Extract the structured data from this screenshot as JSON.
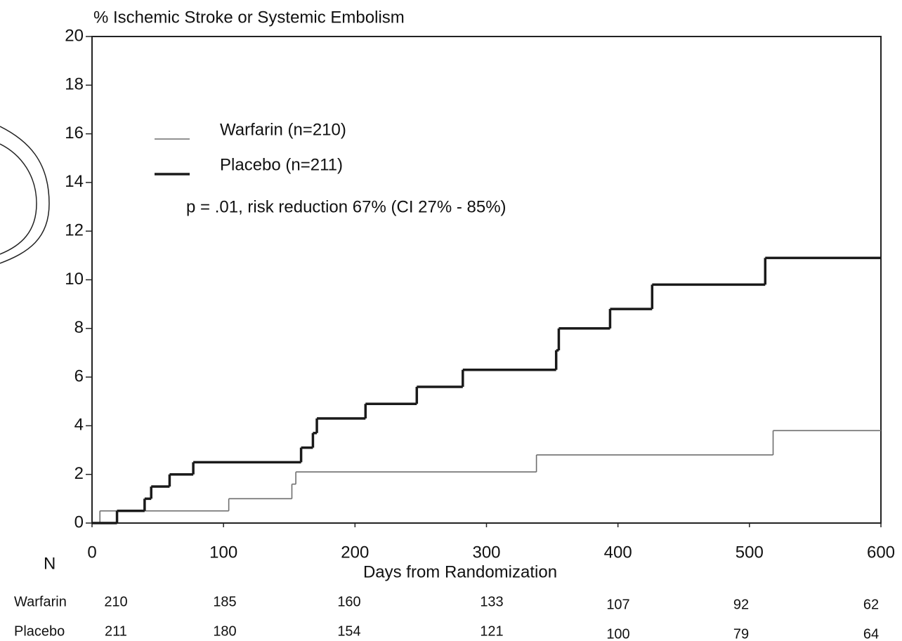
{
  "chart_data": {
    "type": "step",
    "title": "% Ischemic Stroke or Systemic Embolism",
    "x_label": "Days from Randomization",
    "xlim": [
      0,
      600
    ],
    "ylim": [
      0,
      20
    ],
    "xticks": [
      0,
      100,
      200,
      300,
      400,
      500,
      600
    ],
    "yticks": [
      0,
      2,
      4,
      6,
      8,
      10,
      12,
      14,
      16,
      18,
      20
    ],
    "legend": "upper left",
    "series": [
      {
        "name": "Warfarin (n=210)",
        "color": "#6e6e6e",
        "width": 1.6,
        "x": [
          0,
          6,
          104,
          152,
          155,
          338,
          518,
          600
        ],
        "values": [
          0,
          0.5,
          1.0,
          1.6,
          2.1,
          2.8,
          3.8,
          3.8
        ]
      },
      {
        "name": "Placebo (n=211)",
        "color": "#1a1a1a",
        "width": 3.5,
        "x": [
          0,
          19,
          40,
          45,
          59,
          77,
          159,
          168,
          171,
          208,
          247,
          282,
          353,
          355,
          394,
          426,
          512,
          600
        ],
        "values": [
          0,
          0.5,
          1.0,
          1.5,
          2.0,
          2.5,
          3.1,
          3.7,
          4.3,
          4.9,
          5.6,
          6.3,
          7.1,
          8.0,
          8.8,
          9.8,
          10.9,
          10.9
        ]
      }
    ],
    "annotation": "p = .01, risk reduction 67% (CI 27% - 85%)",
    "risk_table": {
      "title": "N",
      "rows": [
        {
          "name": "Warfarin",
          "values": [
            210,
            185,
            160,
            133,
            107,
            92,
            62
          ]
        },
        {
          "name": "Placebo",
          "values": [
            211,
            180,
            154,
            121,
            100,
            79,
            64
          ]
        }
      ]
    }
  }
}
